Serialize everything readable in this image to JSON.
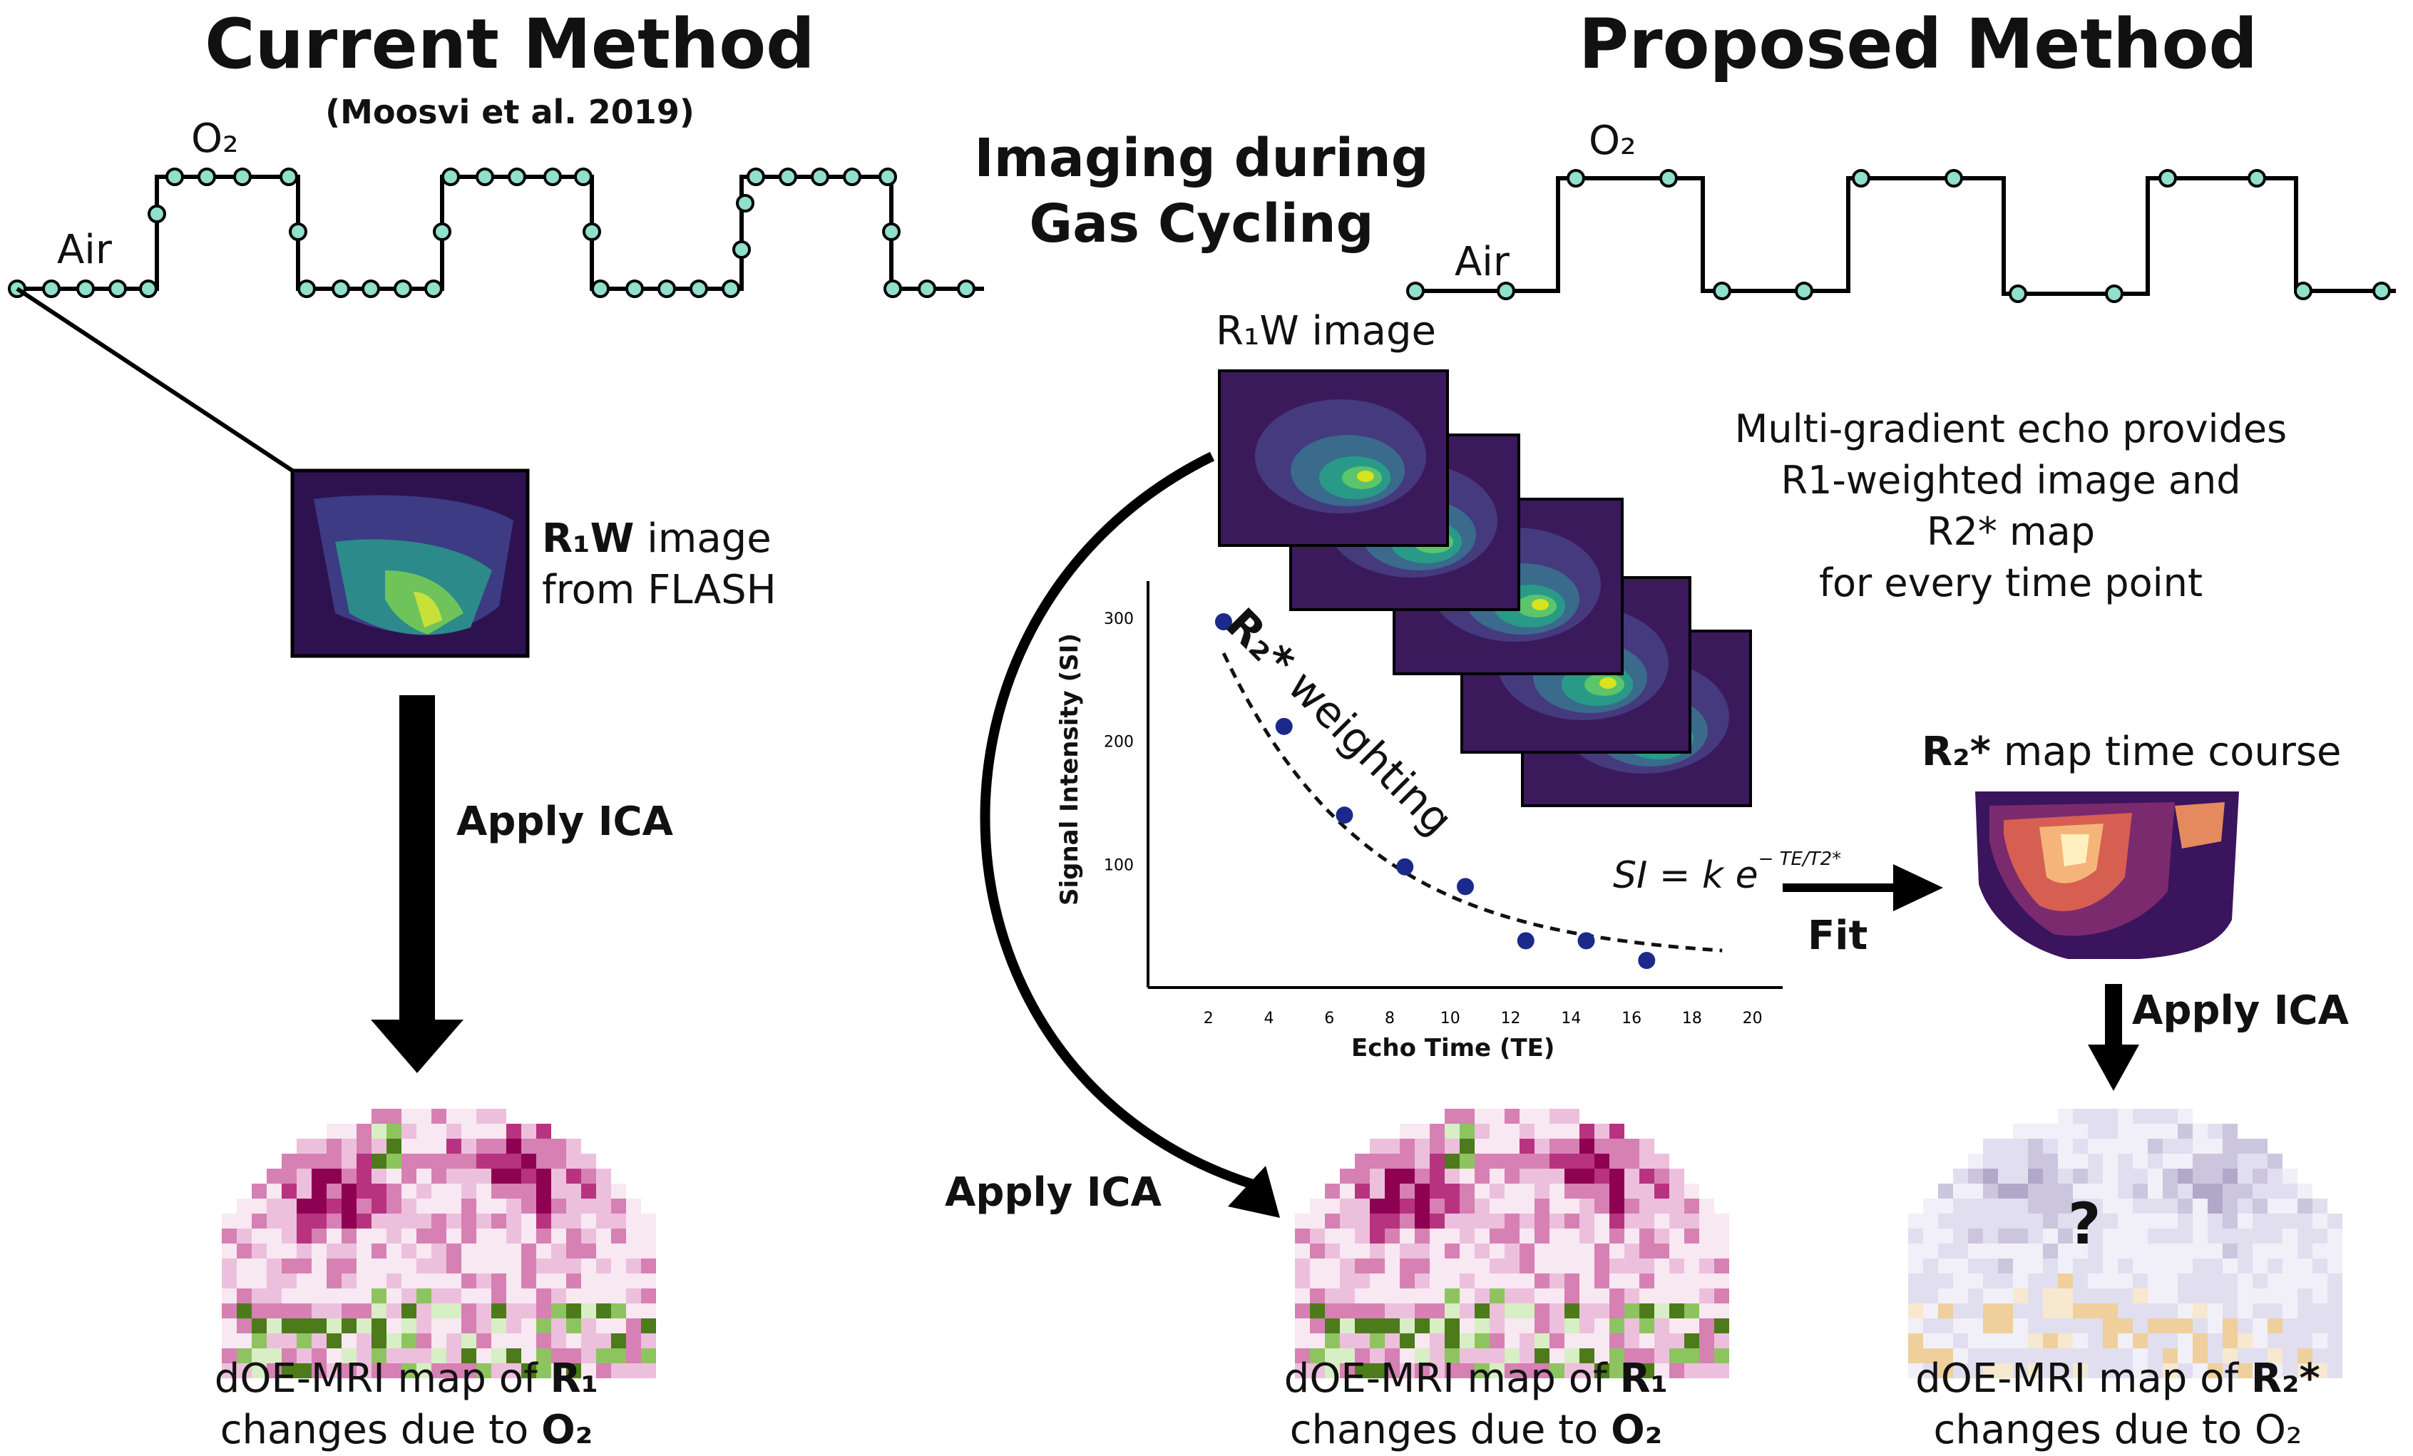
{
  "current": {
    "title": "Current Method",
    "citation": "(Moosvi et al. 2019)",
    "air_label": "Air",
    "o2_label": "O₂",
    "image_label_bold": "R₁W",
    "image_label_rest": " image",
    "image_label_line2": "from FLASH",
    "apply_ica": "Apply ICA",
    "caption_line1_pre": "dOE-MRI map of ",
    "caption_line1_bold": "R₁",
    "caption_line2_pre": "changes due to ",
    "caption_line2_bold": "O₂"
  },
  "middle": {
    "line1": "Imaging during",
    "line2": "Gas Cycling"
  },
  "proposed": {
    "title": "Proposed Method",
    "air_label": "Air",
    "o2_label": "O₂",
    "r1w_label": "R₁W image",
    "note_lines": [
      "Multi-gradient echo provides",
      "R1-weighted image and",
      "R2* map",
      "for every time point"
    ],
    "weighting_bold": "R₂*",
    "weighting_rest": " weighting",
    "formula": "SI = k e",
    "formula_exp": "− TE/T2*",
    "fit_label": "Fit",
    "r2_label_bold": "R₂*",
    "r2_label_rest": " map time course",
    "apply_ica_left": "Apply ICA",
    "apply_ica_right": "Apply ICA",
    "question": "?",
    "caption_mid_line1_pre": "dOE-MRI map of ",
    "caption_mid_line1_bold": "R₁",
    "caption_mid_line2_pre": "changes due to ",
    "caption_mid_line2_bold": "O₂",
    "caption_right_line1_pre": "dOE-MRI map of ",
    "caption_right_line1_bold": "R₂*",
    "caption_right_line2": "changes due to O₂"
  },
  "plot": {
    "x_label": "Echo Time (TE)",
    "y_label": "Signal Intensity (SI)",
    "x_ticks": [
      "2",
      "4",
      "6",
      "8",
      "10",
      "12",
      "14",
      "16",
      "18",
      "20"
    ],
    "y_ticks": [
      "300",
      "200",
      "100"
    ]
  },
  "chart_data": {
    "type": "scatter",
    "xlabel": "Echo Time (TE)",
    "ylabel": "Signal Intensity (SI)",
    "xlim": [
      0,
      21
    ],
    "ylim": [
      0,
      330
    ],
    "points": [
      {
        "x": 2.5,
        "y": 297
      },
      {
        "x": 4.5,
        "y": 212
      },
      {
        "x": 6.5,
        "y": 140
      },
      {
        "x": 8.5,
        "y": 98
      },
      {
        "x": 10.5,
        "y": 82
      },
      {
        "x": 12.5,
        "y": 38
      },
      {
        "x": 14.5,
        "y": 38
      },
      {
        "x": 16.5,
        "y": 22
      }
    ],
    "fit": {
      "k": 420,
      "t2": 4.8,
      "baseline": 22
    }
  },
  "colors": {
    "dot_fill": "#8fe0cc",
    "viridis": [
      "#3b1a5c",
      "#453a7e",
      "#3a6a8c",
      "#2a9a88",
      "#5cc46a",
      "#d8e21f"
    ],
    "magma": [
      "#1c0f3a",
      "#5a1a6a",
      "#a33a6a",
      "#e0705a",
      "#f9c98a",
      "#fff3c8"
    ],
    "piyg_pink": "#8e0152",
    "piyg_green": "#4d9221",
    "purple_soft": "#b0a8c8",
    "orange_soft": "#f4dcb0",
    "plot_dot": "#1b2a8a"
  }
}
